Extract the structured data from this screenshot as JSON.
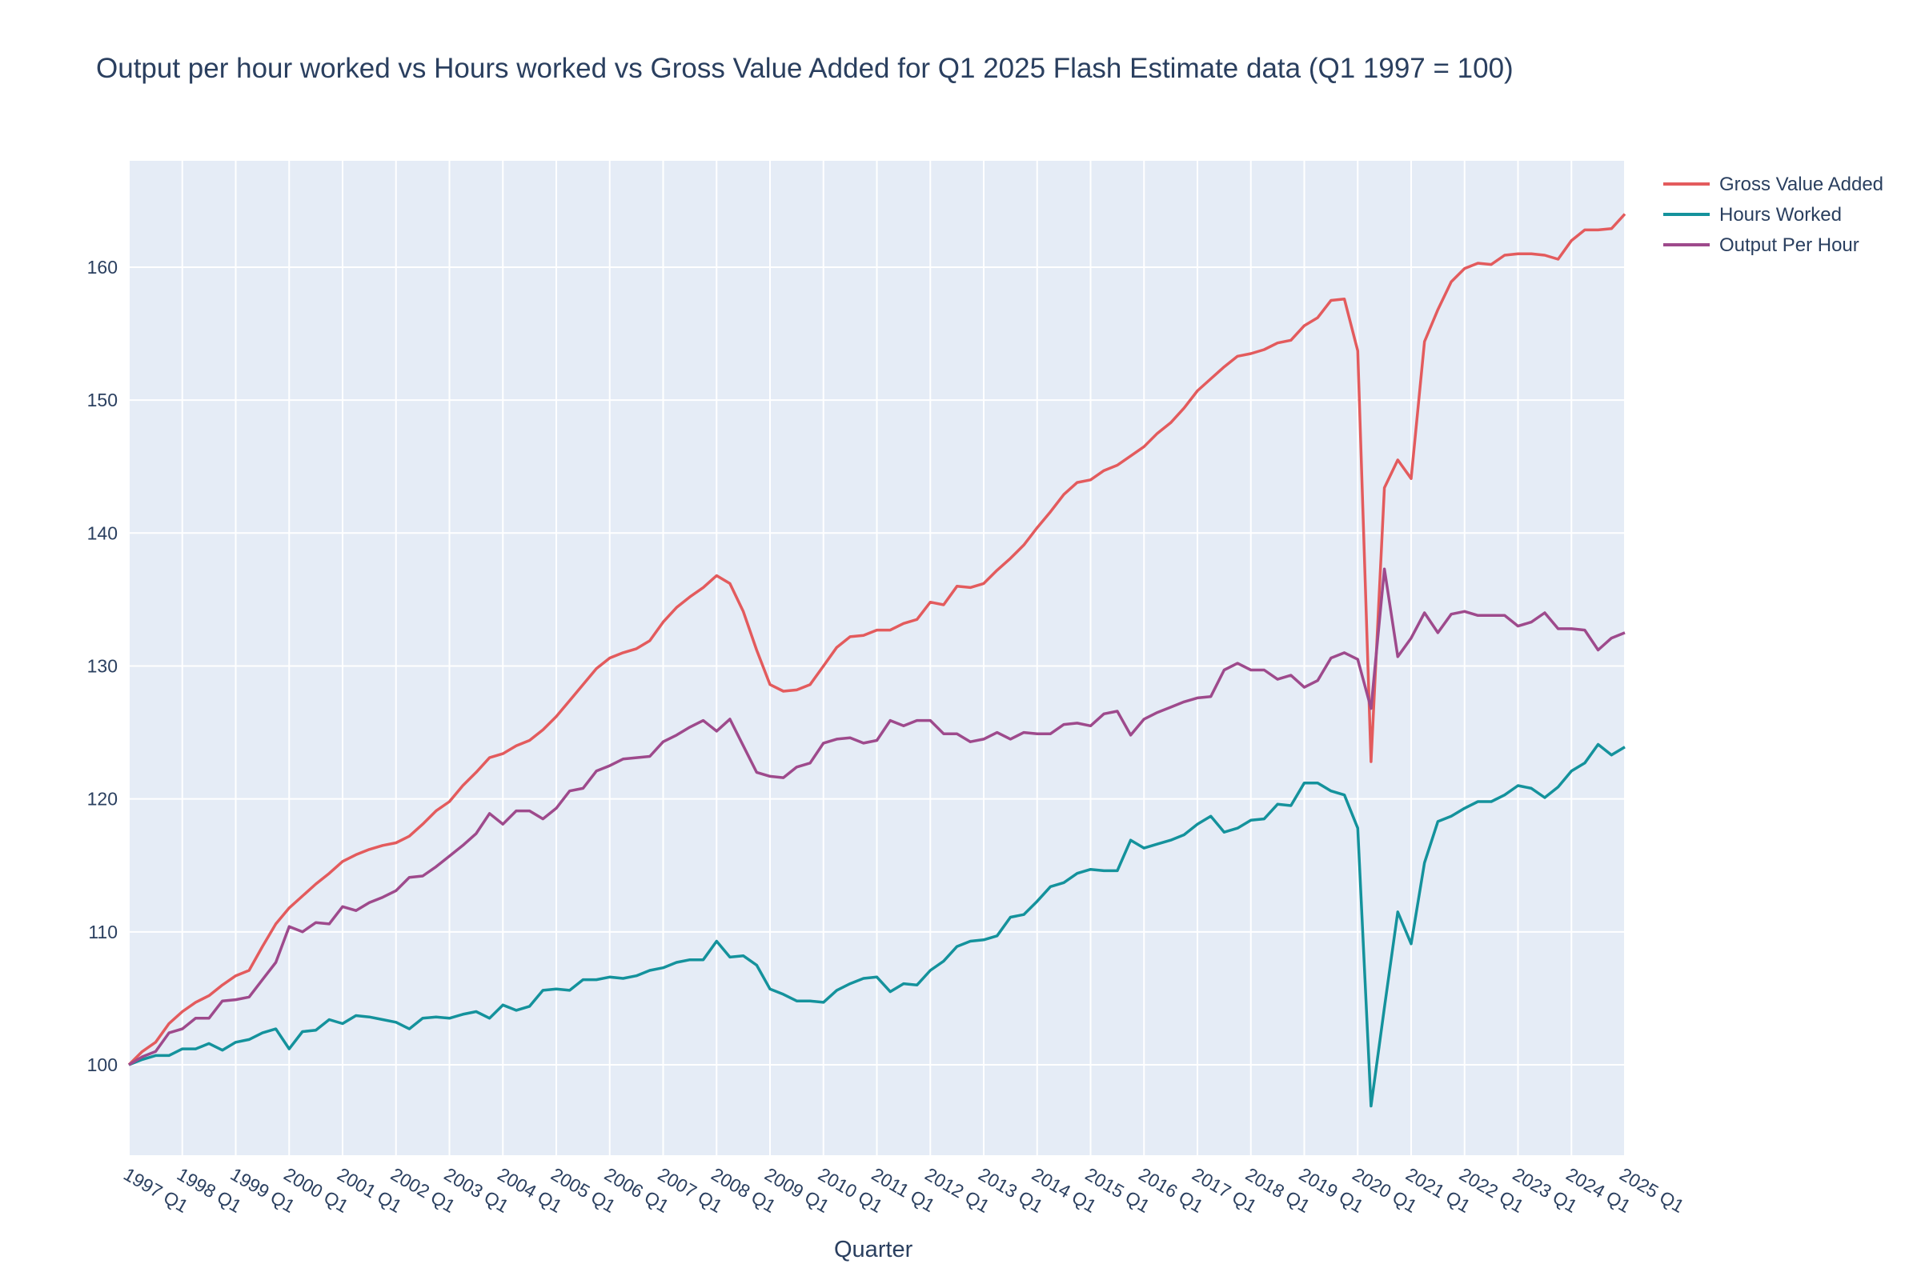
{
  "chart_data": {
    "type": "line",
    "title": "Output per hour worked vs Hours worked vs Gross Value Added for Q1 2025 Flash Estimate data (Q1 1997 = 100)",
    "xlabel": "Quarter",
    "ylabel": "",
    "x_start": "1997 Q1",
    "x_end": "2025 Q1",
    "x_tick_labels": [
      "1997 Q1",
      "1998 Q1",
      "1999 Q1",
      "2000 Q1",
      "2001 Q1",
      "2002 Q1",
      "2003 Q1",
      "2004 Q1",
      "2005 Q1",
      "2006 Q1",
      "2007 Q1",
      "2008 Q1",
      "2009 Q1",
      "2010 Q1",
      "2011 Q1",
      "2012 Q1",
      "2013 Q1",
      "2014 Q1",
      "2015 Q1",
      "2016 Q1",
      "2017 Q1",
      "2018 Q1",
      "2019 Q1",
      "2020 Q1",
      "2021 Q1",
      "2022 Q1",
      "2023 Q1",
      "2024 Q1",
      "2025 Q1"
    ],
    "y_ticks": [
      100,
      110,
      120,
      130,
      140,
      150,
      160
    ],
    "ylim": [
      93.2,
      168
    ],
    "grid": true,
    "legend_position": "top-right",
    "series": [
      {
        "name": "Gross Value Added",
        "color": "#e35b5d",
        "values": [
          100.0,
          101.0,
          101.7,
          103.1,
          104.0,
          104.7,
          105.2,
          106.0,
          106.7,
          107.1,
          108.9,
          110.6,
          111.8,
          112.7,
          113.6,
          114.4,
          115.3,
          115.8,
          116.2,
          116.5,
          116.7,
          117.2,
          118.1,
          119.1,
          119.8,
          121.0,
          122.0,
          123.1,
          123.4,
          124.0,
          124.4,
          125.2,
          126.2,
          127.4,
          128.6,
          129.8,
          130.6,
          131.0,
          131.3,
          131.9,
          133.3,
          134.4,
          135.2,
          135.9,
          136.8,
          136.2,
          134.1,
          131.2,
          128.6,
          128.1,
          128.2,
          128.6,
          130.0,
          131.4,
          132.2,
          132.3,
          132.7,
          132.7,
          133.2,
          133.5,
          134.8,
          134.6,
          136.0,
          135.9,
          136.2,
          137.2,
          138.1,
          139.1,
          140.4,
          141.6,
          142.9,
          143.8,
          144.0,
          144.7,
          145.1,
          145.8,
          146.5,
          147.5,
          148.3,
          149.4,
          150.7,
          151.6,
          152.5,
          153.3,
          153.5,
          153.8,
          154.3,
          154.5,
          155.6,
          156.2,
          157.5,
          157.6,
          153.7,
          122.8,
          143.4,
          145.5,
          144.1,
          154.4,
          156.8,
          158.9,
          159.9,
          160.3,
          160.2,
          160.9,
          161.0,
          161.0,
          160.9,
          160.6,
          162.0,
          162.8,
          162.8,
          162.9,
          164.0
        ]
      },
      {
        "name": "Hours Worked",
        "color": "#14929c",
        "values": [
          100.0,
          100.4,
          100.7,
          100.7,
          101.2,
          101.2,
          101.6,
          101.1,
          101.7,
          101.9,
          102.4,
          102.7,
          101.2,
          102.5,
          102.6,
          103.4,
          103.1,
          103.7,
          103.6,
          103.4,
          103.2,
          102.7,
          103.5,
          103.6,
          103.5,
          103.8,
          104.0,
          103.5,
          104.5,
          104.1,
          104.4,
          105.6,
          105.7,
          105.6,
          106.4,
          106.4,
          106.6,
          106.5,
          106.7,
          107.1,
          107.3,
          107.7,
          107.9,
          107.9,
          109.3,
          108.1,
          108.2,
          107.5,
          105.7,
          105.3,
          104.8,
          104.8,
          104.7,
          105.6,
          106.1,
          106.5,
          106.6,
          105.5,
          106.1,
          106.0,
          107.1,
          107.8,
          108.9,
          109.3,
          109.4,
          109.7,
          111.1,
          111.3,
          112.3,
          113.4,
          113.7,
          114.4,
          114.7,
          114.6,
          114.6,
          116.9,
          116.3,
          116.6,
          116.9,
          117.3,
          118.1,
          118.7,
          117.5,
          117.8,
          118.4,
          118.5,
          119.6,
          119.5,
          121.2,
          121.2,
          120.6,
          120.3,
          117.8,
          96.9,
          104.3,
          111.5,
          109.1,
          115.2,
          118.3,
          118.7,
          119.3,
          119.8,
          119.8,
          120.3,
          121.0,
          120.8,
          120.1,
          120.9,
          122.1,
          122.7,
          124.1,
          123.3,
          123.9
        ]
      },
      {
        "name": "Output Per Hour",
        "color": "#9e4a8c",
        "values": [
          100.0,
          100.6,
          101.0,
          102.4,
          102.7,
          103.5,
          103.5,
          104.8,
          104.9,
          105.1,
          106.4,
          107.7,
          110.4,
          110.0,
          110.7,
          110.6,
          111.9,
          111.6,
          112.2,
          112.6,
          113.1,
          114.1,
          114.2,
          114.9,
          115.7,
          116.5,
          117.4,
          118.9,
          118.1,
          119.1,
          119.1,
          118.5,
          119.3,
          120.6,
          120.8,
          122.1,
          122.5,
          123.0,
          123.1,
          123.2,
          124.3,
          124.8,
          125.4,
          125.9,
          125.1,
          126.0,
          124.0,
          122.0,
          121.7,
          121.6,
          122.4,
          122.7,
          124.2,
          124.5,
          124.6,
          124.2,
          124.4,
          125.9,
          125.5,
          125.9,
          125.9,
          124.9,
          124.9,
          124.3,
          124.5,
          125.0,
          124.5,
          125.0,
          124.9,
          124.9,
          125.6,
          125.7,
          125.5,
          126.4,
          126.6,
          124.8,
          126.0,
          126.5,
          126.9,
          127.3,
          127.6,
          127.7,
          129.7,
          130.2,
          129.7,
          129.7,
          129.0,
          129.3,
          128.4,
          128.9,
          130.6,
          131.0,
          130.5,
          126.8,
          137.3,
          130.7,
          132.1,
          134.0,
          132.5,
          133.9,
          134.1,
          133.8,
          133.8,
          133.8,
          133.0,
          133.3,
          134.0,
          132.8,
          132.8,
          132.7,
          131.2,
          132.1,
          132.5
        ]
      }
    ]
  }
}
